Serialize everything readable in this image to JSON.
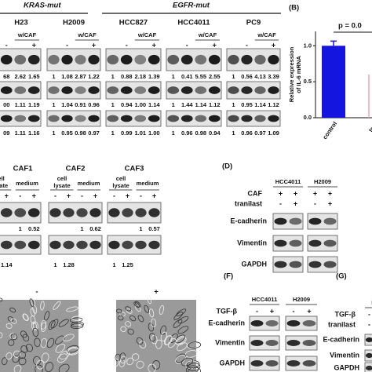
{
  "figure": {
    "panel_a": {
      "groups": [
        "KRAS-mut",
        "EGFR-mut"
      ],
      "condition": "w/CAF",
      "cell_lines": [
        {
          "name": "H23",
          "signs": [
            "-",
            "+"
          ],
          "rows": [
            [
              "68",
              "2.62",
              "1.65"
            ],
            [
              "00",
              "1.11",
              "1.19"
            ],
            [
              "09",
              "1.11",
              "1.16"
            ]
          ]
        },
        {
          "name": "H2009",
          "signs": [
            "-",
            "+"
          ],
          "rows": [
            [
              "1",
              "1.08",
              "2.87",
              "1.22"
            ],
            [
              "1",
              "1.04",
              "0.91",
              "0.96"
            ],
            [
              "1",
              "0.95",
              "0.98",
              "0.97"
            ]
          ]
        },
        {
          "name": "HCC827",
          "signs": [
            "-",
            "+"
          ],
          "rows": [
            [
              "1",
              "0.88",
              "2.18",
              "1.39"
            ],
            [
              "1",
              "0.94",
              "1.00",
              "1.14"
            ],
            [
              "1",
              "0.99",
              "1.01",
              "1.00"
            ]
          ]
        },
        {
          "name": "HCC4011",
          "signs": [
            "-",
            "+"
          ],
          "rows": [
            [
              "1",
              "0.41",
              "5.55",
              "2.55"
            ],
            [
              "1",
              "1.44",
              "1.14",
              "1.12"
            ],
            [
              "1",
              "0.96",
              "0.98",
              "0.94"
            ]
          ]
        },
        {
          "name": "PC9",
          "signs": [
            "-",
            "+"
          ],
          "rows": [
            [
              "1",
              "0.56",
              "4.13",
              "3.39"
            ],
            [
              "1",
              "0.95",
              "1.14",
              "1.12"
            ],
            [
              "1",
              "0.96",
              "0.97",
              "1.09"
            ]
          ]
        }
      ]
    },
    "panel_b": {
      "label": "(B)",
      "annotation": "p = 0.0",
      "chart_data": {
        "type": "bar",
        "y_label": [
          "Relative expression",
          "of IL-6 mRNA"
        ],
        "categories": [
          "control",
          "tran"
        ],
        "values": [
          1.0,
          null
        ],
        "color": "#1515e0",
        "ylim": [
          0,
          1.2
        ],
        "yticks": [
          {
            "value": 0,
            "label": "0.0"
          },
          {
            "value": 0.5,
            "label": "0.5"
          },
          {
            "value": 1,
            "label": "1.0"
          }
        ]
      }
    },
    "panel_c": {
      "cafs": [
        {
          "name": "CAF1",
          "headers": [
            [
              "cell",
              "lysate"
            ],
            "medium"
          ],
          "signs": [
            "+",
            "-",
            "+"
          ],
          "rows": [
            [
              "1",
              "0.52"
            ],
            [
              "1.14"
            ]
          ]
        },
        {
          "name": "CAF2",
          "headers": [
            [
              "cell",
              "lysate"
            ],
            "medium"
          ],
          "signs": [
            "-",
            "+",
            "-",
            "+"
          ],
          "rows": [
            [
              "1",
              "0.62"
            ],
            [
              "1",
              "1.28"
            ]
          ]
        },
        {
          "name": "CAF3",
          "headers": [
            [
              "cell",
              "lysate"
            ],
            "medium"
          ],
          "signs": [
            "-",
            "+",
            "-",
            "+"
          ],
          "rows": [
            [
              "1",
              "0.57"
            ],
            [
              "1",
              "1.25"
            ]
          ]
        }
      ]
    },
    "panel_d": {
      "label": "(D)",
      "cell_lines": [
        "HCC4011",
        "H2009"
      ],
      "conditions": [
        {
          "name": "CAF",
          "signs": [
            "+",
            "+",
            "+",
            "+"
          ]
        },
        {
          "name": "tranilast",
          "signs": [
            "-",
            "+",
            "-",
            "+"
          ]
        }
      ],
      "proteins": [
        "E-cadherin",
        "Vimentin",
        "GAPDH"
      ]
    },
    "panel_e": {
      "conditions": [
        "-",
        "+"
      ]
    },
    "panel_f": {
      "label": "(F)",
      "cell_lines": [
        "HCC4011",
        "H2009"
      ],
      "conditions": [
        {
          "name": "TGF-β",
          "signs": [
            "-",
            "+",
            "-",
            "+"
          ]
        }
      ],
      "proteins": [
        "E-cadherin",
        "Vimentin",
        "GAPDH"
      ]
    },
    "panel_g": {
      "label": "(G)",
      "cell_lines": [
        "H"
      ],
      "conditions": [
        {
          "name": "TGF-β",
          "signs": [
            "-"
          ]
        },
        {
          "name": "tranilast",
          "signs": [
            "-"
          ]
        }
      ],
      "proteins": [
        "E-cadherin",
        "Vimentin",
        "GAPDH"
      ]
    }
  }
}
